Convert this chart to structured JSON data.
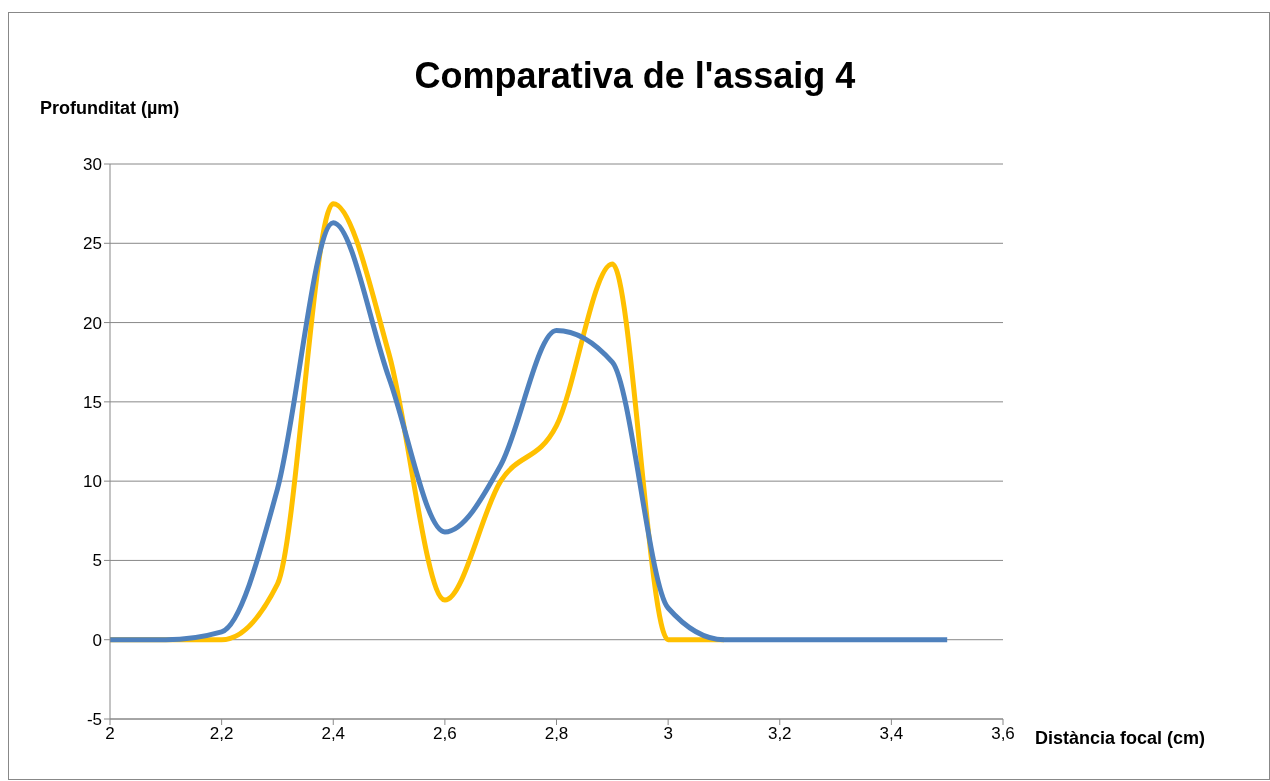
{
  "chart_data": {
    "type": "line",
    "title": "Comparativa de l'assaig 4",
    "xlabel": "Distància focal (cm)",
    "ylabel": "Profunditat (µm)",
    "x": [
      2,
      2.1,
      2.2,
      2.3,
      2.4,
      2.5,
      2.6,
      2.7,
      2.8,
      2.9,
      3,
      3.1,
      3.2,
      3.3,
      3.4,
      3.5
    ],
    "series": [
      {
        "color": "#ffc000",
        "values": [
          0,
          0,
          0,
          3.5,
          27.5,
          18,
          2.5,
          10,
          13.5,
          23.7,
          0,
          0,
          null,
          null,
          null,
          null
        ]
      },
      {
        "color": "#4f81bd",
        "values": [
          0,
          0,
          0.5,
          9.5,
          26.3,
          16.5,
          6.8,
          11,
          19.5,
          17.5,
          2,
          0,
          0,
          0,
          0,
          0
        ]
      }
    ],
    "xlim": [
      2,
      3.6
    ],
    "xticks": [
      2,
      {
        "value": 2.2,
        "label": "2,2"
      },
      {
        "value": 2.4,
        "label": "2,4"
      },
      {
        "value": 2.6,
        "label": "2,6"
      },
      {
        "value": 2.8,
        "label": "2,8"
      },
      3,
      {
        "value": 3.2,
        "label": "3,2"
      },
      {
        "value": 3.4,
        "label": "3,4"
      },
      {
        "value": 3.6,
        "label": "3,6"
      }
    ],
    "ylim": [
      -5,
      30
    ],
    "yticks": [
      -5,
      0,
      5,
      10,
      15,
      20,
      25,
      30
    ],
    "grid": "y",
    "marker": "none",
    "line_style": "solid"
  }
}
